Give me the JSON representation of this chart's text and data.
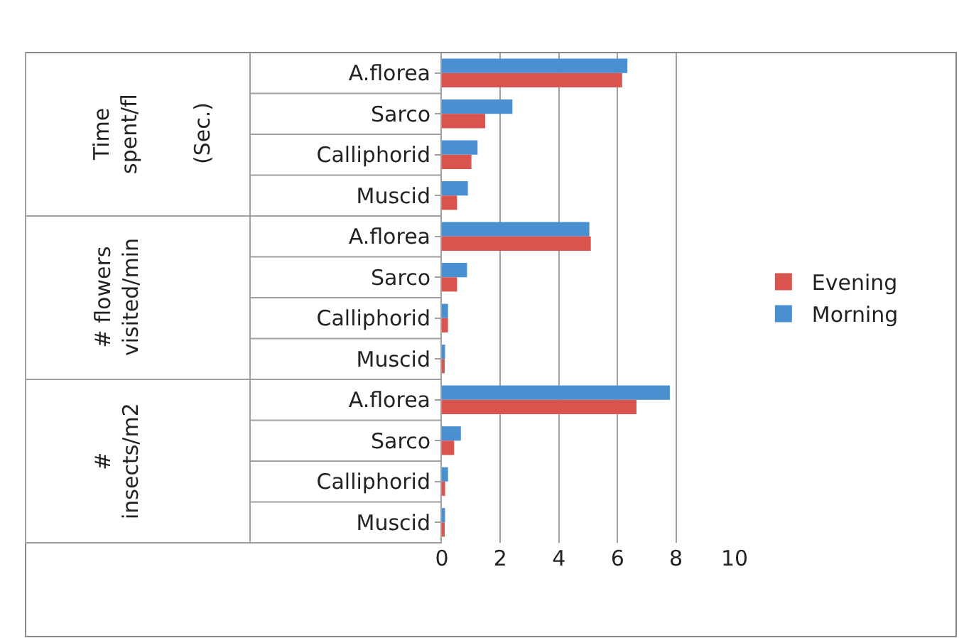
{
  "chart_data": {
    "type": "bar",
    "orientation": "horizontal",
    "categories": [
      "A.florea",
      "Sarco",
      "Calliphorid",
      "Muscid",
      "A.florea",
      "Sarco",
      "Calliphorid",
      "Muscid",
      "A.florea",
      "Sarco",
      "Calliphorid",
      "Muscid"
    ],
    "series": [
      {
        "name": "Evening",
        "color": "#d9534f",
        "values": [
          6.16,
          1.48,
          1.01,
          0.52,
          5.09,
          0.52,
          0.21,
          0.05,
          6.65,
          0.42,
          0.11,
          0.05
        ]
      },
      {
        "name": "Morning",
        "color": "#4a8fcf",
        "values": [
          6.34,
          2.41,
          1.22,
          0.89,
          5.04,
          0.86,
          0.21,
          0.11,
          7.79,
          0.65,
          0.21,
          0.11
        ]
      }
    ],
    "annotations": [
      "Time\nspent/fl",
      "(Sec.)",
      "# flowers\nvisited/min",
      "#\ninsects/m2"
    ],
    "xlim": [
      0,
      10
    ],
    "xticks": [
      0,
      2,
      4,
      6,
      8,
      10
    ],
    "grid": "x",
    "legend": "right"
  }
}
